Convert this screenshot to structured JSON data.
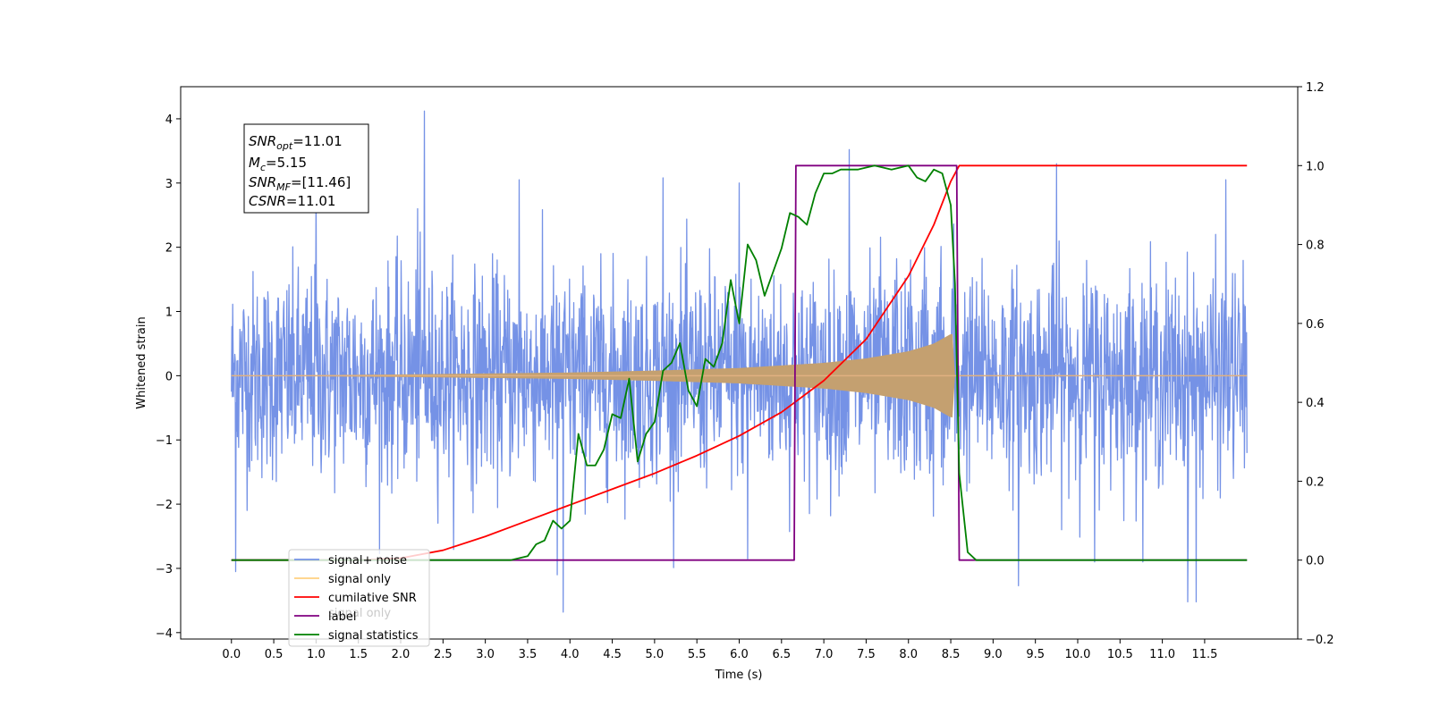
{
  "chart_data": {
    "type": "line",
    "xlabel": "Time (s)",
    "ylabel": "Whitened strain",
    "xlim": [
      -0.6,
      12.6
    ],
    "ylim_left": [
      -4.1,
      4.5
    ],
    "ylim_right": [
      -0.2,
      1.2
    ],
    "x_ticks": [
      0.0,
      0.5,
      1.0,
      1.5,
      2.0,
      2.5,
      3.0,
      3.5,
      4.0,
      4.5,
      5.0,
      5.5,
      6.0,
      6.5,
      7.0,
      7.5,
      8.0,
      8.5,
      9.0,
      9.5,
      10.0,
      10.5,
      11.0,
      11.5
    ],
    "x_tick_labels": [
      "0.0",
      "0.5",
      "1.0",
      "1.5",
      "2.0",
      "2.5",
      "3.0",
      "3.5",
      "4.0",
      "4.5",
      "5.0",
      "5.5",
      "6.0",
      "6.5",
      "7.0",
      "7.5",
      "8.0",
      "8.5",
      "9.0",
      "9.5",
      "10.0",
      "10.5",
      "11.0",
      "11.5"
    ],
    "y_left_ticks": [
      4,
      3,
      2,
      1,
      0,
      -1,
      -2,
      -3,
      -4
    ],
    "y_left_tick_labels": [
      "4",
      "3",
      "2",
      "1",
      "0",
      "−1",
      "−2",
      "−3",
      "−4"
    ],
    "y_right_ticks": [
      1.2,
      1.0,
      0.8,
      0.6,
      0.4,
      0.2,
      0.0,
      -0.2
    ],
    "y_right_tick_labels": [
      "1.2",
      "1.0",
      "0.8",
      "0.6",
      "0.4",
      "0.2",
      "0.0",
      "−0.2"
    ],
    "annotation": {
      "snr_opt": {
        "symbol": "SNR",
        "sub": "opt",
        "value": "=11.01"
      },
      "mc": {
        "symbol": "M",
        "sub": "c",
        "value": "=5.15"
      },
      "snr_mf": {
        "symbol": "SNR",
        "sub": "MF",
        "value": "=[11.46]"
      },
      "csnr": {
        "symbol": "CSNR",
        "value": "=11.01"
      }
    },
    "legend": {
      "position": "lower-left",
      "entries": [
        "signal+ noise",
        "signal only",
        "cumilative SNR",
        "label",
        "signal statistics"
      ],
      "hidden_text": "signal only"
    },
    "series": [
      {
        "name": "signal+ noise",
        "axis": "left",
        "color": "#7592e6",
        "description_shape": "dense noise band, roughly ±1.6 with spikes to ±4",
        "x_range": [
          0.0,
          12.0
        ],
        "spikes": [
          [
            0.05,
            -3.05
          ],
          [
            2.28,
            4.12
          ],
          [
            2.2,
            2.6
          ],
          [
            3.92,
            -3.68
          ],
          [
            3.85,
            -3.1
          ],
          [
            7.3,
            3.52
          ],
          [
            6.0,
            3.0
          ],
          [
            9.3,
            -3.27
          ],
          [
            11.3,
            -3.52
          ],
          [
            11.4,
            -3.52
          ],
          [
            9.75,
            3.3
          ],
          [
            11.75,
            3.05
          ],
          [
            5.1,
            3.08
          ],
          [
            1.0,
            3.0
          ],
          [
            3.4,
            3.05
          ],
          [
            6.1,
            -2.85
          ],
          [
            10.2,
            -2.9
          ]
        ]
      },
      {
        "name": "signal only",
        "axis": "left",
        "color": "#c4a070",
        "description_shape": "chirp envelope growing from 0 to about ±0.65 at 8.55 s",
        "x_range": [
          0.0,
          12.0
        ],
        "t_merge": 8.55,
        "envelope": [
          [
            0.0,
            0.0
          ],
          [
            2.0,
            0.02
          ],
          [
            4.0,
            0.05
          ],
          [
            5.0,
            0.08
          ],
          [
            6.0,
            0.12
          ],
          [
            7.0,
            0.2
          ],
          [
            7.5,
            0.27
          ],
          [
            8.0,
            0.38
          ],
          [
            8.3,
            0.5
          ],
          [
            8.5,
            0.65
          ],
          [
            8.55,
            0.0
          ]
        ]
      },
      {
        "name": "cumilative SNR",
        "axis": "right",
        "color": "#ff0000",
        "x": [
          0.0,
          0.5,
          1.0,
          1.5,
          2.0,
          2.5,
          3.0,
          3.5,
          4.0,
          4.5,
          5.0,
          5.5,
          6.0,
          6.5,
          7.0,
          7.5,
          8.0,
          8.3,
          8.5,
          8.6,
          9.0,
          10.0,
          11.0,
          12.0
        ],
        "y": [
          0.0,
          0.0,
          0.0,
          0.0,
          0.005,
          0.025,
          0.06,
          0.1,
          0.14,
          0.18,
          0.22,
          0.265,
          0.315,
          0.375,
          0.455,
          0.56,
          0.72,
          0.85,
          0.96,
          1.0,
          1.0,
          1.0,
          1.0,
          1.0
        ]
      },
      {
        "name": "label",
        "axis": "right",
        "color": "#800080",
        "x": [
          0.0,
          6.65,
          6.67,
          8.57,
          8.6,
          12.0
        ],
        "y": [
          0.0,
          0.0,
          1.0,
          1.0,
          0.0,
          0.0
        ]
      },
      {
        "name": "signal statistics",
        "axis": "right",
        "color": "#008000",
        "x": [
          0.0,
          3.3,
          3.4,
          3.5,
          3.6,
          3.7,
          3.8,
          3.9,
          4.0,
          4.1,
          4.2,
          4.3,
          4.4,
          4.5,
          4.6,
          4.7,
          4.8,
          4.9,
          5.0,
          5.1,
          5.2,
          5.3,
          5.4,
          5.5,
          5.6,
          5.7,
          5.8,
          5.9,
          6.0,
          6.1,
          6.2,
          6.3,
          6.4,
          6.5,
          6.6,
          6.7,
          6.8,
          6.9,
          7.0,
          7.1,
          7.2,
          7.4,
          7.6,
          7.8,
          8.0,
          8.1,
          8.2,
          8.3,
          8.4,
          8.5,
          8.55,
          8.6,
          8.7,
          8.8,
          12.0
        ],
        "y": [
          0.0,
          0.0,
          0.005,
          0.01,
          0.04,
          0.05,
          0.1,
          0.08,
          0.1,
          0.32,
          0.24,
          0.24,
          0.28,
          0.37,
          0.36,
          0.46,
          0.25,
          0.32,
          0.35,
          0.48,
          0.5,
          0.55,
          0.43,
          0.39,
          0.51,
          0.49,
          0.55,
          0.71,
          0.6,
          0.8,
          0.76,
          0.67,
          0.73,
          0.79,
          0.88,
          0.87,
          0.85,
          0.93,
          0.98,
          0.98,
          0.99,
          0.99,
          1.0,
          0.99,
          1.0,
          0.97,
          0.96,
          0.99,
          0.98,
          0.9,
          0.7,
          0.22,
          0.02,
          0.0,
          0.0
        ]
      }
    ]
  }
}
